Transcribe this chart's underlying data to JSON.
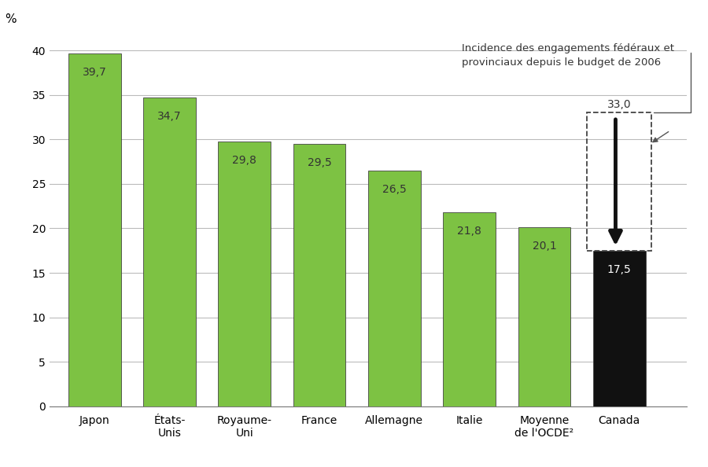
{
  "categories": [
    "Japon",
    "États-\nUnis",
    "Royaume-\nUni",
    "France",
    "Allemagne",
    "Italie",
    "Moyenne\nde l'OCDE²",
    "Canada"
  ],
  "values": [
    39.7,
    34.7,
    29.8,
    29.5,
    26.5,
    21.8,
    20.1,
    17.5
  ],
  "bar_colors": [
    "#7dc243",
    "#7dc243",
    "#7dc243",
    "#7dc243",
    "#7dc243",
    "#7dc243",
    "#7dc243",
    "#111111"
  ],
  "value_labels": [
    "39,7",
    "34,7",
    "29,8",
    "29,5",
    "26,5",
    "21,8",
    "20,1",
    "17,5"
  ],
  "value_label_colors": [
    "#333333",
    "#333333",
    "#333333",
    "#333333",
    "#333333",
    "#333333",
    "#333333",
    "#ffffff"
  ],
  "canada_old_value": 33.0,
  "canada_old_label": "33,0",
  "annotation_text": "Incidence des engagements fédéraux et\nprovinciaux depuis le budget de 2006",
  "ylabel": "%",
  "ylim": [
    0,
    42
  ],
  "yticks": [
    0,
    5,
    10,
    15,
    20,
    25,
    30,
    35,
    40
  ],
  "background_color": "#ffffff",
  "grid_color": "#bbbbbb",
  "bar_edge_color": "#444444",
  "bar_width": 0.7
}
